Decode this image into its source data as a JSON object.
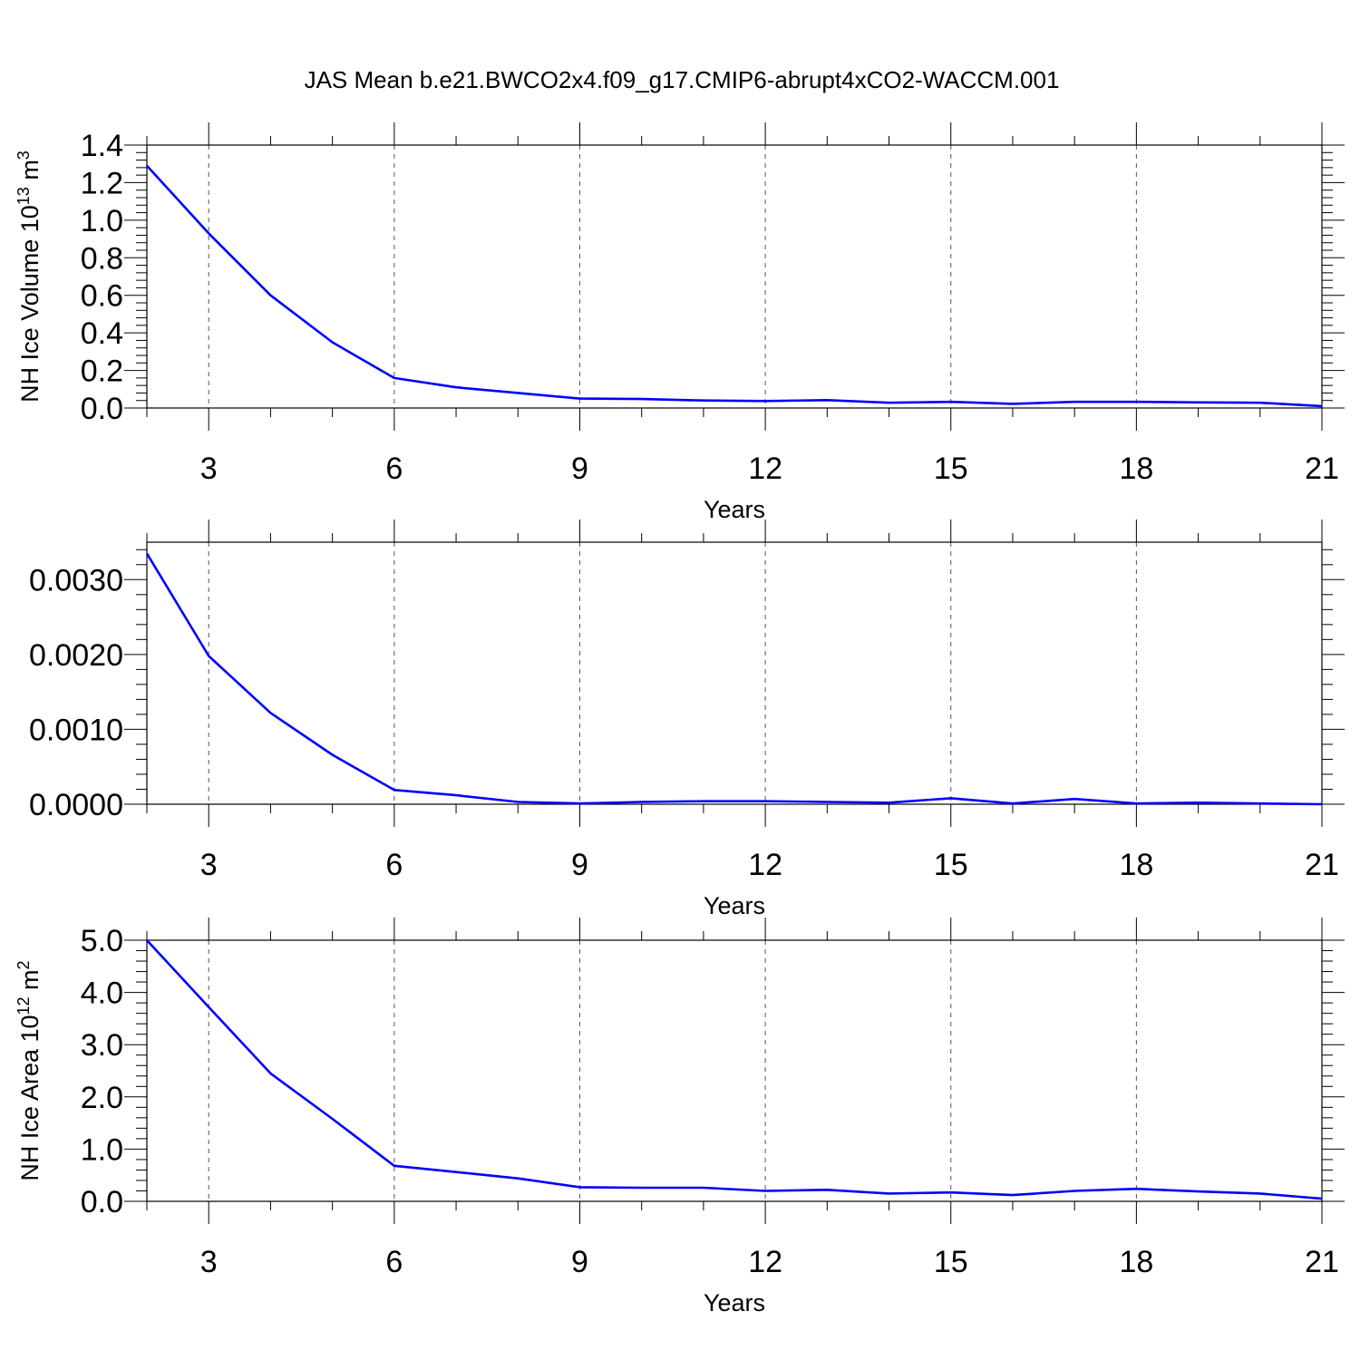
{
  "title": "JAS Mean b.e21.BWCO2x4.f09_g17.CMIP6-abrupt4xCO2-WACCM.001",
  "colors": {
    "line": "#0000ff",
    "axis": "#000000",
    "grid": "#555555"
  },
  "chart_data": [
    {
      "type": "line",
      "xlabel": "Years",
      "ylabel": {
        "prefix": "NH Ice Volume 10",
        "exp": "13",
        "unit": " m",
        "unit_exp": "3"
      },
      "xlim": [
        2,
        21
      ],
      "ylim": [
        0,
        1.4
      ],
      "xticks": [
        3,
        6,
        9,
        12,
        15,
        18,
        21
      ],
      "yticks": [
        "0.0",
        "0.2",
        "0.4",
        "0.6",
        "0.8",
        "1.0",
        "1.2",
        "1.4"
      ],
      "grid": "vertical dashed at x ticks",
      "x": [
        2,
        3,
        4,
        5,
        6,
        7,
        8,
        9,
        10,
        11,
        12,
        13,
        14,
        15,
        16,
        17,
        18,
        19,
        20,
        21
      ],
      "y": [
        1.29,
        0.93,
        0.6,
        0.35,
        0.16,
        0.11,
        0.08,
        0.05,
        0.048,
        0.04,
        0.037,
        0.042,
        0.028,
        0.033,
        0.022,
        0.033,
        0.033,
        0.03,
        0.028,
        0.01
      ]
    },
    {
      "type": "line",
      "xlabel": "Years",
      "ylabel": null,
      "xlim": [
        2,
        21
      ],
      "ylim": [
        0,
        0.0035
      ],
      "xticks": [
        3,
        6,
        9,
        12,
        15,
        18,
        21
      ],
      "yticks": [
        "0.0000",
        "0.0010",
        "0.0020",
        "0.0030"
      ],
      "grid": "vertical dashed at x ticks",
      "x": [
        2,
        3,
        4,
        5,
        6,
        7,
        8,
        9,
        10,
        11,
        12,
        13,
        14,
        15,
        16,
        17,
        18,
        19,
        20,
        21
      ],
      "y": [
        0.00335,
        0.00198,
        0.00122,
        0.00066,
        0.00019,
        0.00012,
        3e-05,
        1e-05,
        3e-05,
        4e-05,
        4e-05,
        3e-05,
        2e-05,
        8e-05,
        1e-05,
        7e-05,
        1e-05,
        2e-05,
        1e-05,
        0.0
      ]
    },
    {
      "type": "line",
      "xlabel": "Years",
      "ylabel": {
        "prefix": "NH Ice Area 10",
        "exp": "12",
        "unit": " m",
        "unit_exp": "2"
      },
      "xlim": [
        2,
        21
      ],
      "ylim": [
        0,
        5.0
      ],
      "xticks": [
        3,
        6,
        9,
        12,
        15,
        18,
        21
      ],
      "yticks": [
        "0.0",
        "1.0",
        "2.0",
        "3.0",
        "4.0",
        "5.0"
      ],
      "grid": "vertical dashed at x ticks",
      "x": [
        2,
        3,
        4,
        5,
        6,
        7,
        8,
        9,
        10,
        11,
        12,
        13,
        14,
        15,
        16,
        17,
        18,
        19,
        20,
        21
      ],
      "y": [
        5.0,
        3.72,
        2.45,
        1.58,
        0.68,
        0.56,
        0.44,
        0.27,
        0.26,
        0.26,
        0.2,
        0.22,
        0.15,
        0.17,
        0.12,
        0.2,
        0.24,
        0.19,
        0.15,
        0.05
      ]
    }
  ]
}
